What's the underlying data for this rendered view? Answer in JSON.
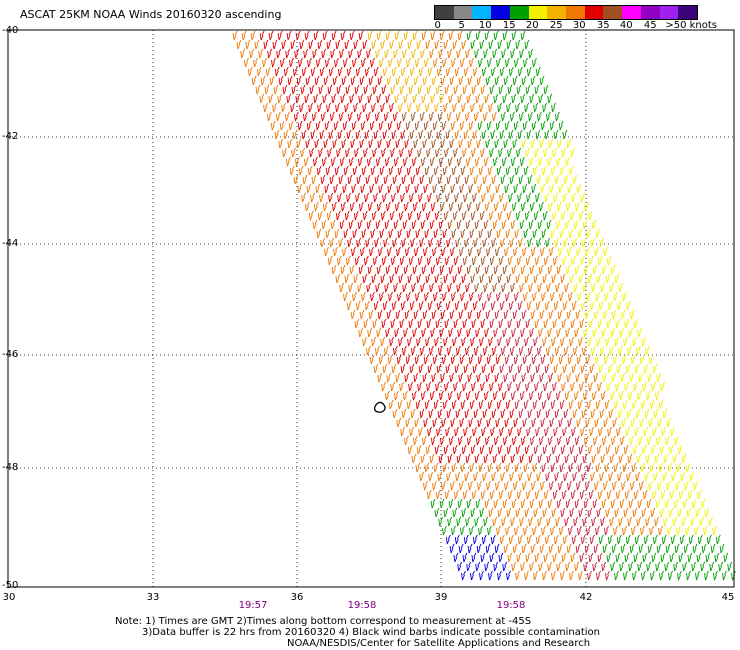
{
  "title": "ASCAT 25KM NOAA Winds 20160320 ascending",
  "legend": {
    "colors": [
      "#404040",
      "#888888",
      "#00b4ff",
      "#0000e0",
      "#00a000",
      "#f2f200",
      "#f2b400",
      "#f07800",
      "#e00000",
      "#a05020",
      "#ff00ff",
      "#9000c0",
      "#a020f0",
      "#3c0078"
    ],
    "labels": [
      "0",
      "5",
      "10",
      "15",
      "20",
      "25",
      "30",
      "35",
      "40",
      "45",
      ">50 knots"
    ]
  },
  "map": {
    "lat_labels": [
      "-40",
      "-42",
      "-44",
      "-46",
      "-48",
      "-50"
    ],
    "lon_labels": [
      "30",
      "33",
      "36",
      "39",
      "42",
      "45"
    ]
  },
  "times": [
    "19:57",
    "19:58",
    "19:58"
  ],
  "notes": {
    "line1": "Note: 1) Times are GMT 2)Times along bottom correspond to measurement at -45S",
    "line2": "3)Data buffer is 22 hrs from 20160320 4) Black wind barbs indicate possible contamination",
    "line3": "NOAA/NESDIS/Center for Satellite Applications and Research"
  }
}
